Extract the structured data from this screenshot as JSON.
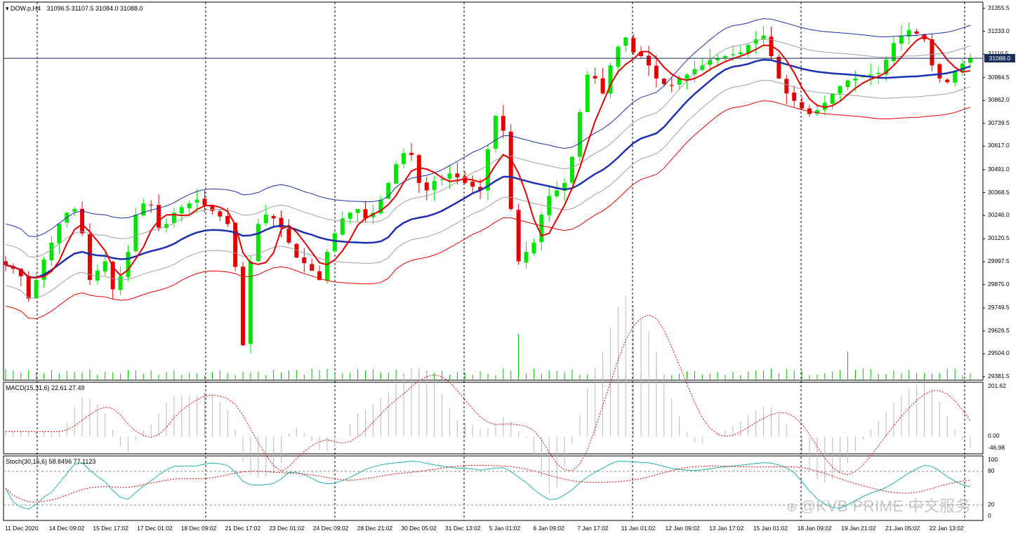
{
  "main_panel": {
    "symbol_header": "DOW.p,H4",
    "ohlc_header": "31096.5 31107.5 31084.0 31088.0",
    "current_price_label": "31088.0",
    "current_price": 31088.0,
    "price_axis_labels": [
      "31355.5",
      "31233.0",
      "31110.5",
      "30984.5",
      "30862.0",
      "30739.5",
      "30617.0",
      "30491.0",
      "30368.5",
      "30246.0",
      "30120.5",
      "29997.5",
      "29875.0",
      "29749.5",
      "29626.5",
      "29504.0",
      "29381.5"
    ]
  },
  "macd_panel": {
    "header": "MACD(15,31,6) 22.61 27.49",
    "axis_labels": [
      "201.62",
      "0.00",
      "-46.98"
    ]
  },
  "stoch_panel": {
    "header": "Stoch(30,15,6) 58.8496 77.1123",
    "axis_labels": [
      "100",
      "80",
      "20",
      "0"
    ]
  },
  "date_labels": [
    "11 Dec 2020",
    "14 Dec 09:02",
    "15 Dec 17:02",
    "17 Dec 01:02",
    "18 Dec 09:02",
    "21 Dec 17:02",
    "23 Dec 01:02",
    "24 Dec 09:02",
    "28 Dec 21:02",
    "30 Dec 05:02",
    "31 Dec 13:02",
    "5 Jan 01:02",
    "6 Jan 09:02",
    "7 Jan 17:02",
    "11 Jan 01:02",
    "12 Jan 09:02",
    "13 Jan 17:02",
    "15 Jan 01:02",
    "18 Jan 09:02",
    "19 Jan 21:02",
    "21 Jan 05:02",
    "22 Jan 13:02"
  ],
  "watermark": "@KVB PRIME 中文服务",
  "colors": {
    "bull_candle": "#00e600",
    "bear_candle": "#e60000",
    "fast_ma": "#e60000",
    "mid_ma": "#1c2fb0",
    "upper_band": "#1c2fb0",
    "lower_band": "#e60000",
    "inner_bands": "#a0a0a0",
    "volume": "#00c000",
    "macd_hist": "#b8b8b8",
    "macd_signal": "#e60000",
    "stoch_main": "#20b2aa",
    "stoch_signal": "#e60000",
    "price_line": "#1a2b5e"
  },
  "chart_data": {
    "type": "candlestick",
    "timeframe": "H4",
    "price_range": [
      29381.5,
      31355.5
    ],
    "closes": [
      29980,
      29960,
      29920,
      29800,
      29900,
      30010,
      30100,
      30200,
      30260,
      30280,
      30150,
      29900,
      29950,
      30000,
      29850,
      29920,
      30050,
      30250,
      30310,
      30300,
      30180,
      30200,
      30260,
      30290,
      30310,
      30330,
      30300,
      30270,
      30240,
      30200,
      29970,
      29550,
      30000,
      30200,
      30250,
      30230,
      30180,
      30100,
      30020,
      29990,
      29950,
      29900,
      30050,
      30150,
      30230,
      30260,
      30280,
      30230,
      30260,
      30330,
      30420,
      30520,
      30580,
      30570,
      30420,
      30380,
      30430,
      30440,
      30470,
      30450,
      30420,
      30400,
      30380,
      30600,
      30780,
      30700,
      30280,
      30000,
      30050,
      30100,
      30250,
      30350,
      30380,
      30420,
      30560,
      30800,
      31000,
      30980,
      30900,
      31050,
      31150,
      31200,
      31120,
      31100,
      31050,
      30980,
      30950,
      30940,
      30980,
      31000,
      31030,
      31050,
      31080,
      31090,
      31100,
      31110,
      31120,
      31160,
      31190,
      31210,
      31100,
      30980,
      30900,
      30860,
      30820,
      30790,
      30810,
      30850,
      30900,
      30940,
      30970,
      30980,
      30990,
      31000,
      31010,
      31080,
      31170,
      31210,
      31240,
      31220,
      31190,
      31050,
      30980,
      30960,
      31020,
      31060,
      31088
    ],
    "volume_spikes": [
      {
        "label": "5 Jan 01:02 area",
        "relative": "high"
      },
      {
        "label": "15 Jan 01:02 area",
        "relative": "high"
      }
    ],
    "macd": {
      "fast": 15,
      "slow": 31,
      "signal": 6,
      "main": 22.61,
      "signal_value": 27.49,
      "range": [
        -46.98,
        201.62
      ]
    },
    "stochastic": {
      "k": 30,
      "d": 15,
      "slowing": 6,
      "main": 58.8496,
      "signal": 77.1123,
      "levels": [
        20,
        80
      ]
    }
  }
}
